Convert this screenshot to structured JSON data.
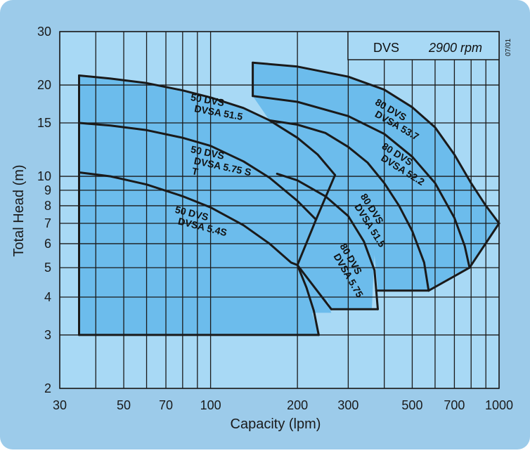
{
  "colors": {
    "background": "#9ccbea",
    "plot_area": "#a8d9f5",
    "region_fill": "#6cbcec",
    "line": "#1a1a1a",
    "label_bg": "#a8d9f5"
  },
  "header": {
    "model": "DVS",
    "speed": "2900 rpm",
    "code": "07/01"
  },
  "chart_data": {
    "type": "line",
    "xscale": "log",
    "yscale": "log",
    "xlabel": "Capacity (lpm)",
    "ylabel": "Total Head (m)",
    "xlim": [
      30,
      1000
    ],
    "ylim": [
      2,
      30
    ],
    "grid": true,
    "x_ticks": [
      {
        "value": 30,
        "label": "30"
      },
      {
        "value": 50,
        "label": "50"
      },
      {
        "value": 70,
        "label": "70"
      },
      {
        "value": 100,
        "label": "100"
      },
      {
        "value": 200,
        "label": "200"
      },
      {
        "value": 300,
        "label": "300"
      },
      {
        "value": 500,
        "label": "500"
      },
      {
        "value": 700,
        "label": "700"
      },
      {
        "value": 1000,
        "label": "1000"
      }
    ],
    "x_grid": [
      30,
      40,
      50,
      60,
      70,
      80,
      90,
      100,
      200,
      300,
      400,
      500,
      600,
      700,
      800,
      900,
      1000
    ],
    "y_ticks": [
      {
        "value": 2,
        "label": "2"
      },
      {
        "value": 3,
        "label": "3"
      },
      {
        "value": 4,
        "label": "4"
      },
      {
        "value": 5,
        "label": "5"
      },
      {
        "value": 6,
        "label": "6"
      },
      {
        "value": 7,
        "label": "7"
      },
      {
        "value": 8,
        "label": "8"
      },
      {
        "value": 9,
        "label": "9"
      },
      {
        "value": 10,
        "label": "10"
      },
      {
        "value": 15,
        "label": "15"
      },
      {
        "value": 20,
        "label": "20"
      },
      {
        "value": 30,
        "label": "30"
      }
    ],
    "regions": [
      {
        "name": "50-frame",
        "outline": [
          [
            35,
            3
          ],
          [
            35,
            21.5
          ],
          [
            45,
            21
          ],
          [
            60,
            20.3
          ],
          [
            80,
            19.2
          ],
          [
            100,
            18.2
          ],
          [
            130,
            16.8
          ],
          [
            160,
            15.3
          ],
          [
            200,
            13.4
          ],
          [
            235,
            11.8
          ],
          [
            270,
            10.1
          ],
          [
            250,
            8.5
          ],
          [
            232,
            7.2
          ],
          [
            211,
            5.9
          ],
          [
            200,
            5.1
          ],
          [
            210,
            4.8
          ],
          [
            223,
            4.45
          ],
          [
            250,
            4.05
          ],
          [
            262,
            3.55
          ],
          [
            225,
            3.55
          ],
          [
            237,
            3.0
          ]
        ]
      },
      {
        "name": "80-frame",
        "outline": [
          [
            140,
            18.4
          ],
          [
            140,
            23.7
          ],
          [
            200,
            23
          ],
          [
            300,
            21.3
          ],
          [
            400,
            19.3
          ],
          [
            500,
            16.9
          ],
          [
            600,
            14.5
          ],
          [
            700,
            11.8
          ],
          [
            800,
            9.5
          ],
          [
            900,
            8.0
          ],
          [
            1000,
            7.0
          ],
          [
            900,
            6.1
          ],
          [
            790,
            5.0
          ],
          [
            700,
            4.75
          ],
          [
            570,
            4.2
          ],
          [
            380,
            4.2
          ],
          [
            375,
            4.8
          ],
          [
            370,
            5.5
          ],
          [
            362,
            3.65
          ],
          [
            262,
            3.65
          ],
          [
            250,
            4.05
          ],
          [
            223,
            4.45
          ],
          [
            210,
            4.8
          ],
          [
            200,
            5.1
          ],
          [
            211,
            5.9
          ],
          [
            232,
            7.2
          ],
          [
            250,
            8.5
          ],
          [
            270,
            10.1
          ],
          [
            235,
            11.8
          ],
          [
            200,
            13.4
          ],
          [
            178,
            14.5
          ],
          [
            160,
            15.3
          ]
        ]
      }
    ],
    "series": [
      {
        "name": "50 DVS / DVSA 51.5",
        "points": [
          [
            35,
            21.5
          ],
          [
            45,
            21
          ],
          [
            60,
            20.3
          ],
          [
            80,
            19.2
          ],
          [
            100,
            18.2
          ],
          [
            130,
            16.8
          ],
          [
            160,
            15.3
          ],
          [
            200,
            13.4
          ],
          [
            235,
            11.8
          ],
          [
            270,
            10.1
          ]
        ]
      },
      {
        "name": "50 DVS / DVSA 5.75 ST",
        "points": [
          [
            35,
            15
          ],
          [
            45,
            14.7
          ],
          [
            60,
            14.2
          ],
          [
            80,
            13.4
          ],
          [
            100,
            12.6
          ],
          [
            130,
            11.2
          ],
          [
            160,
            9.9
          ],
          [
            200,
            8.3
          ],
          [
            232,
            7.2
          ]
        ]
      },
      {
        "name": "50 DVS / DVSA 5.4S",
        "points": [
          [
            35,
            10.3
          ],
          [
            45,
            10.0
          ],
          [
            60,
            9.4
          ],
          [
            80,
            8.6
          ],
          [
            100,
            7.9
          ],
          [
            130,
            6.9
          ],
          [
            160,
            6.0
          ],
          [
            190,
            5.2
          ],
          [
            200,
            5.1
          ],
          [
            215,
            4.3
          ],
          [
            228,
            3.6
          ],
          [
            237,
            3.0
          ]
        ]
      },
      {
        "name": "80 DVS / DVSA 53.7",
        "points": [
          [
            140,
            23.7
          ],
          [
            200,
            23
          ],
          [
            300,
            21.3
          ],
          [
            400,
            19.3
          ],
          [
            500,
            16.9
          ],
          [
            600,
            14.5
          ],
          [
            700,
            11.8
          ],
          [
            800,
            9.5
          ],
          [
            900,
            8.0
          ],
          [
            1000,
            7.0
          ]
        ]
      },
      {
        "name": "80 DVS / DVSA 52.2",
        "points": [
          [
            140,
            18.4
          ],
          [
            200,
            17.6
          ],
          [
            300,
            15.8
          ],
          [
            400,
            13.8
          ],
          [
            500,
            11.6
          ],
          [
            600,
            9.5
          ],
          [
            700,
            7.3
          ],
          [
            760,
            5.9
          ],
          [
            790,
            5.0
          ]
        ]
      },
      {
        "name": "80 DVS / DVSA 51.5",
        "points": [
          [
            160,
            15.3
          ],
          [
            200,
            14.8
          ],
          [
            250,
            13.9
          ],
          [
            300,
            12.5
          ],
          [
            350,
            11.1
          ],
          [
            400,
            9.5
          ],
          [
            450,
            8.0
          ],
          [
            500,
            6.6
          ],
          [
            550,
            5.2
          ],
          [
            570,
            4.2
          ]
        ]
      },
      {
        "name": "80 DVS / DVSA 5.75",
        "points": [
          [
            170,
            10.2
          ],
          [
            200,
            9.7
          ],
          [
            250,
            8.6
          ],
          [
            300,
            7.4
          ],
          [
            340,
            6.1
          ],
          [
            370,
            4.9
          ],
          [
            380,
            3.65
          ]
        ]
      }
    ],
    "boundaries": [
      {
        "name": "50-frame-bottom",
        "points": [
          [
            35,
            3
          ],
          [
            237,
            3
          ]
        ]
      },
      {
        "name": "50-frame-left",
        "points": [
          [
            35,
            3
          ],
          [
            35,
            21.5
          ]
        ]
      },
      {
        "name": "80-frame-left",
        "points": [
          [
            140,
            18.4
          ],
          [
            140,
            23.7
          ]
        ]
      },
      {
        "name": "diagonal-1",
        "points": [
          [
            270,
            10.1
          ],
          [
            232,
            7.2
          ]
        ]
      },
      {
        "name": "diagonal-2",
        "points": [
          [
            232,
            7.2
          ],
          [
            200,
            5.1
          ]
        ]
      },
      {
        "name": "diagonal-3",
        "points": [
          [
            200,
            5.1
          ],
          [
            262,
            3.65
          ]
        ]
      },
      {
        "name": "segment-5-75-bottom",
        "points": [
          [
            262,
            3.65
          ],
          [
            380,
            3.65
          ]
        ]
      },
      {
        "name": "step-1",
        "points": [
          [
            375,
            4.2
          ],
          [
            570,
            4.2
          ]
        ]
      },
      {
        "name": "end-53.7",
        "points": [
          [
            1000,
            7.0
          ],
          [
            790,
            5.0
          ]
        ]
      },
      {
        "name": "end-52.2",
        "points": [
          [
            790,
            5.0
          ],
          [
            570,
            4.2
          ]
        ]
      }
    ],
    "annotations": [
      {
        "lines": [
          "50 DVS",
          "DVSA  51.5"
        ],
        "x": 85,
        "y": 17.8,
        "angle": 10
      },
      {
        "lines": [
          "50 DVS",
          "DVSA  5.75 S",
          "                T"
        ],
        "x": 85,
        "y": 12.0,
        "angle": 12
      },
      {
        "lines": [
          "50 DVS",
          "DVSA  5.4S"
        ],
        "x": 75,
        "y": 7.6,
        "angle": 14
      },
      {
        "lines": [
          "80 DVS",
          "DVSA  53.7"
        ],
        "x": 370,
        "y": 17.3,
        "angle": 30
      },
      {
        "lines": [
          "80 DVS",
          "DVSA  52.2"
        ],
        "x": 390,
        "y": 12.4,
        "angle": 32
      },
      {
        "lines": [
          "80 DVS",
          "DVSA  51.5"
        ],
        "x": 330,
        "y": 8.6,
        "angle": 58
      },
      {
        "lines": [
          "80 DVS",
          "DVSA  5.75"
        ],
        "x": 280,
        "y": 5.9,
        "angle": 60
      }
    ]
  }
}
